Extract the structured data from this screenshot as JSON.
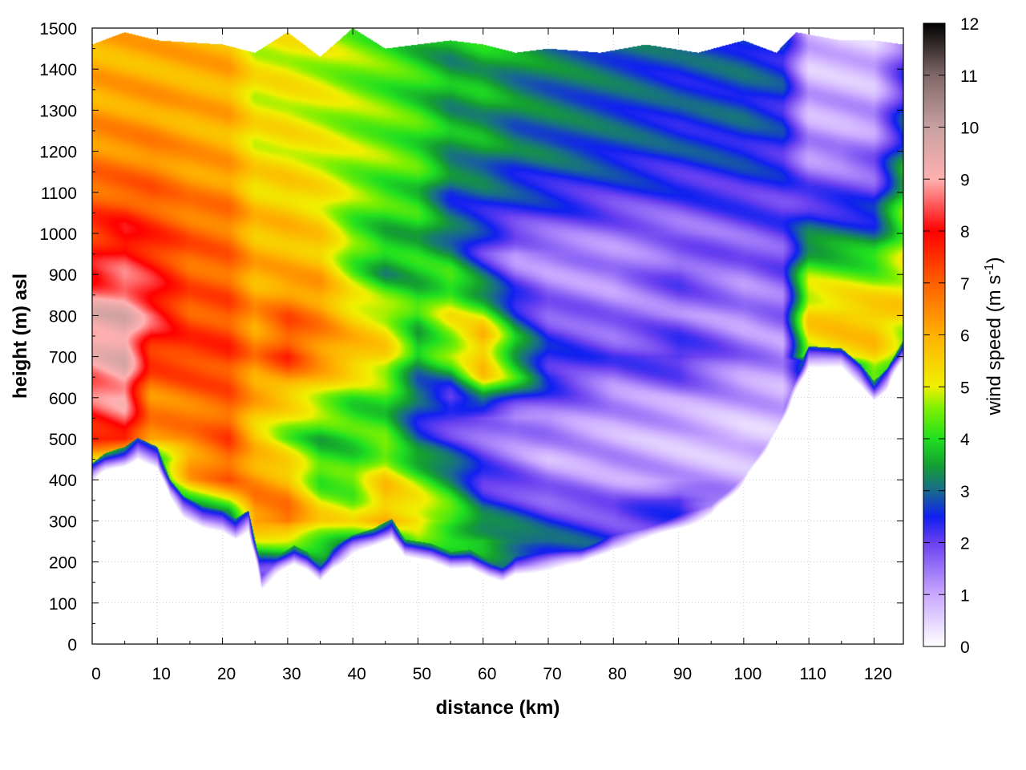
{
  "chart_data": {
    "type": "heatmap",
    "xlabel": "distance (km)",
    "ylabel": "height (m) asl",
    "colorbar_label": "wind speed (m s",
    "colorbar_label_superscript": "-1",
    "colorbar_label_suffix": ")",
    "xlim": [
      0,
      124.5
    ],
    "ylim": [
      0,
      1500
    ],
    "clim": [
      0,
      12
    ],
    "x_ticks": [
      0,
      10,
      20,
      30,
      40,
      50,
      60,
      70,
      80,
      90,
      100,
      110,
      120
    ],
    "y_ticks": [
      0,
      100,
      200,
      300,
      400,
      500,
      600,
      700,
      800,
      900,
      1000,
      1100,
      1200,
      1300,
      1400,
      1500
    ],
    "colorbar_ticks": [
      0,
      1,
      2,
      3,
      4,
      5,
      6,
      7,
      8,
      9,
      10,
      11,
      12
    ],
    "grid": true,
    "colormap": [
      [
        0,
        "#ffffff"
      ],
      [
        1,
        "#c9a8ff"
      ],
      [
        2,
        "#6a40f0"
      ],
      [
        2.5,
        "#1020f0"
      ],
      [
        3,
        "#186a8e"
      ],
      [
        3.5,
        "#14a030"
      ],
      [
        4,
        "#20e020"
      ],
      [
        4.6,
        "#80f000"
      ],
      [
        5,
        "#f0f000"
      ],
      [
        6,
        "#ffb000"
      ],
      [
        7,
        "#ff6000"
      ],
      [
        8,
        "#ff0000"
      ],
      [
        9,
        "#ffb0b0"
      ],
      [
        10,
        "#c8a0a0"
      ],
      [
        11,
        "#806868"
      ],
      [
        12,
        "#000000"
      ]
    ],
    "terrain_height": [
      [
        0,
        400
      ],
      [
        2,
        425
      ],
      [
        5,
        440
      ],
      [
        7,
        462
      ],
      [
        10,
        440
      ],
      [
        12,
        360
      ],
      [
        14,
        320
      ],
      [
        17,
        295
      ],
      [
        20,
        285
      ],
      [
        22,
        265
      ],
      [
        24,
        285
      ],
      [
        26,
        145
      ],
      [
        28,
        170
      ],
      [
        31,
        200
      ],
      [
        33,
        185
      ],
      [
        35,
        155
      ],
      [
        37,
        195
      ],
      [
        40,
        225
      ],
      [
        43,
        240
      ],
      [
        46,
        265
      ],
      [
        48,
        215
      ],
      [
        52,
        205
      ],
      [
        55,
        185
      ],
      [
        58,
        190
      ],
      [
        61,
        165
      ],
      [
        63,
        155
      ],
      [
        65,
        180
      ],
      [
        70,
        190
      ],
      [
        75,
        200
      ],
      [
        80,
        240
      ],
      [
        85,
        260
      ],
      [
        90,
        290
      ],
      [
        95,
        320
      ],
      [
        100,
        400
      ],
      [
        105,
        520
      ],
      [
        108,
        620
      ],
      [
        110,
        685
      ],
      [
        115,
        680
      ],
      [
        118,
        640
      ],
      [
        120,
        600
      ],
      [
        122,
        630
      ],
      [
        124.5,
        700
      ]
    ],
    "top_of_data": [
      [
        0,
        1460
      ],
      [
        5,
        1490
      ],
      [
        10,
        1470
      ],
      [
        20,
        1460
      ],
      [
        25,
        1440
      ],
      [
        30,
        1490
      ],
      [
        35,
        1430
      ],
      [
        40,
        1500
      ],
      [
        45,
        1450
      ],
      [
        50,
        1460
      ],
      [
        55,
        1470
      ],
      [
        60,
        1460
      ],
      [
        65,
        1440
      ],
      [
        70,
        1450
      ],
      [
        78,
        1440
      ],
      [
        85,
        1460
      ],
      [
        93,
        1440
      ],
      [
        100,
        1470
      ],
      [
        105,
        1440
      ],
      [
        108,
        1490
      ],
      [
        115,
        1470
      ],
      [
        120,
        1470
      ],
      [
        124.5,
        1460
      ]
    ],
    "wind_speed_columns": [
      {
        "x": 0,
        "z": [
          400,
          500,
          600,
          700,
          800,
          900,
          1000,
          1100,
          1200,
          1300,
          1400,
          1500
        ],
        "v": [
          3,
          7.5,
          8.5,
          9,
          9.5,
          8,
          7.5,
          7,
          6.5,
          6.2,
          6,
          6
        ]
      },
      {
        "x": 5,
        "z": [
          440,
          500,
          600,
          700,
          800,
          900,
          1000,
          1100,
          1200,
          1300,
          1400,
          1500
        ],
        "v": [
          3,
          8,
          9,
          9.5,
          9.5,
          8.5,
          8,
          7,
          6.5,
          6.2,
          6,
          6
        ]
      },
      {
        "x": 9,
        "z": [
          450,
          500,
          600,
          700,
          800,
          900,
          1000,
          1100,
          1200,
          1300,
          1400,
          1500
        ],
        "v": [
          3,
          6.5,
          6.5,
          7.5,
          8.5,
          8,
          7.5,
          7,
          6.5,
          6.2,
          6,
          6
        ]
      },
      {
        "x": 15,
        "z": [
          300,
          400,
          500,
          600,
          700,
          800,
          900,
          1000,
          1100,
          1200,
          1300,
          1500
        ],
        "v": [
          2,
          6,
          6.5,
          6.8,
          7.5,
          7.2,
          7,
          7,
          6.5,
          6.2,
          6,
          6
        ]
      },
      {
        "x": 21,
        "z": [
          280,
          400,
          500,
          600,
          700,
          800,
          900,
          1000,
          1100,
          1200,
          1300,
          1500
        ],
        "v": [
          2,
          7,
          7.2,
          7,
          7.5,
          7.2,
          7,
          6.8,
          6.5,
          6,
          6,
          6
        ]
      },
      {
        "x": 25,
        "z": [
          180,
          300,
          400,
          500,
          600,
          700,
          800,
          900,
          1000,
          1100,
          1200,
          1500
        ],
        "v": [
          2,
          6.5,
          6.5,
          5.5,
          6,
          6.5,
          6.2,
          6,
          5.8,
          5.5,
          5.2,
          5
        ]
      },
      {
        "x": 30,
        "z": [
          190,
          300,
          400,
          500,
          600,
          700,
          800,
          900,
          1000,
          1100,
          1200,
          1500
        ],
        "v": [
          2,
          7,
          6,
          4.5,
          5.5,
          7.5,
          7,
          6,
          5.8,
          5.5,
          5.2,
          5
        ]
      },
      {
        "x": 35,
        "z": [
          160,
          300,
          400,
          500,
          600,
          700,
          800,
          900,
          1000,
          1100,
          1200,
          1500
        ],
        "v": [
          2,
          5.5,
          4.2,
          3.8,
          5,
          6.5,
          6.5,
          6,
          5.5,
          5.2,
          5,
          4.8
        ]
      },
      {
        "x": 40,
        "z": [
          225,
          300,
          400,
          500,
          600,
          700,
          800,
          900,
          1000,
          1100,
          1200,
          1500
        ],
        "v": [
          3,
          5,
          4.2,
          4,
          4.2,
          6,
          5.5,
          4.5,
          4.3,
          4.6,
          4.7,
          4.5
        ]
      },
      {
        "x": 45,
        "z": [
          260,
          300,
          400,
          500,
          600,
          700,
          800,
          900,
          1000,
          1100,
          1200,
          1500
        ],
        "v": [
          3,
          6,
          5.5,
          4.2,
          4,
          5.5,
          5,
          3.5,
          3.8,
          4.2,
          4.5,
          4.2
        ]
      },
      {
        "x": 50,
        "z": [
          210,
          300,
          400,
          500,
          600,
          700,
          800,
          900,
          1000,
          1100,
          1200,
          1500
        ],
        "v": [
          3,
          5.5,
          4.5,
          2.7,
          2.8,
          3.5,
          4,
          3.8,
          3.8,
          4,
          4.2,
          3.8
        ]
      },
      {
        "x": 55,
        "z": [
          190,
          300,
          400,
          500,
          600,
          700,
          800,
          900,
          1000,
          1100,
          1200,
          1500
        ],
        "v": [
          3,
          4.5,
          3.5,
          2.2,
          2,
          4.5,
          5,
          4,
          3,
          2.8,
          3.5,
          3.5
        ]
      },
      {
        "x": 60,
        "z": [
          170,
          250,
          350,
          450,
          550,
          650,
          750,
          850,
          950,
          1050,
          1200,
          1500
        ],
        "v": [
          2.5,
          4,
          2.5,
          2,
          1.5,
          5.5,
          6,
          3.5,
          2.2,
          2.6,
          3.4,
          3.8
        ]
      },
      {
        "x": 65,
        "z": [
          180,
          250,
          350,
          450,
          550,
          650,
          750,
          850,
          950,
          1050,
          1200,
          1500
        ],
        "v": [
          2.5,
          3.5,
          2.2,
          1.5,
          1.2,
          4,
          3.5,
          2.2,
          1.2,
          2.4,
          3,
          3.5
        ]
      },
      {
        "x": 70,
        "z": [
          190,
          250,
          350,
          450,
          550,
          650,
          750,
          850,
          950,
          1050,
          1200,
          1500
        ],
        "v": [
          2.5,
          3,
          1.8,
          1,
          1.5,
          2.5,
          2.2,
          1.5,
          1.2,
          2.2,
          3,
          3.2
        ]
      },
      {
        "x": 80,
        "z": [
          240,
          300,
          400,
          500,
          600,
          700,
          800,
          900,
          1000,
          1100,
          1200,
          1500
        ],
        "v": [
          2.5,
          2,
          1.2,
          1,
          1.2,
          2,
          1.5,
          1.2,
          1.5,
          2.3,
          2.8,
          3
        ]
      },
      {
        "x": 90,
        "z": [
          290,
          350,
          400,
          500,
          600,
          700,
          800,
          900,
          1000,
          1100,
          1200,
          1500
        ],
        "v": [
          2,
          2.5,
          1,
          0.8,
          1.2,
          2.5,
          1.5,
          2,
          1.5,
          2.2,
          2.6,
          2.8
        ]
      },
      {
        "x": 100,
        "z": [
          400,
          450,
          500,
          600,
          700,
          800,
          900,
          1000,
          1100,
          1200,
          1300,
          1500
        ],
        "v": [
          1,
          0.8,
          0.6,
          1,
          1.5,
          1.2,
          1.5,
          1.8,
          2.3,
          2.6,
          2.8,
          2.8
        ]
      },
      {
        "x": 106,
        "z": [
          550,
          600,
          700,
          800,
          900,
          1000,
          1100,
          1200,
          1300,
          1400,
          1500
        ],
        "v": [
          0.8,
          1,
          1.2,
          1.5,
          1.8,
          2,
          2.2,
          2.4,
          2.5,
          2.6,
          2.6
        ]
      },
      {
        "x": 110,
        "z": [
          690,
          700,
          800,
          900,
          1000,
          1100,
          1200,
          1300,
          1400,
          1500
        ],
        "v": [
          3,
          5,
          5.5,
          4.5,
          3,
          2,
          1.2,
          1,
          0.8,
          0.8
        ]
      },
      {
        "x": 115,
        "z": [
          680,
          700,
          800,
          900,
          1000,
          1100,
          1200,
          1300,
          1400,
          1500
        ],
        "v": [
          3,
          5.2,
          5.8,
          4.5,
          3,
          2,
          1.2,
          1,
          0.8,
          0.6
        ]
      },
      {
        "x": 120,
        "z": [
          600,
          650,
          700,
          800,
          900,
          1000,
          1100,
          1200,
          1300,
          1400,
          1500
        ],
        "v": [
          3,
          4.5,
          5.5,
          5.8,
          4.5,
          3,
          2,
          1.5,
          1,
          0.8,
          0.6
        ]
      },
      {
        "x": 124.5,
        "z": [
          700,
          800,
          900,
          1000,
          1100,
          1200,
          1300,
          1400,
          1500
        ],
        "v": [
          4,
          5.5,
          5,
          4.5,
          4,
          3,
          2.5,
          2,
          1.5
        ]
      }
    ]
  }
}
